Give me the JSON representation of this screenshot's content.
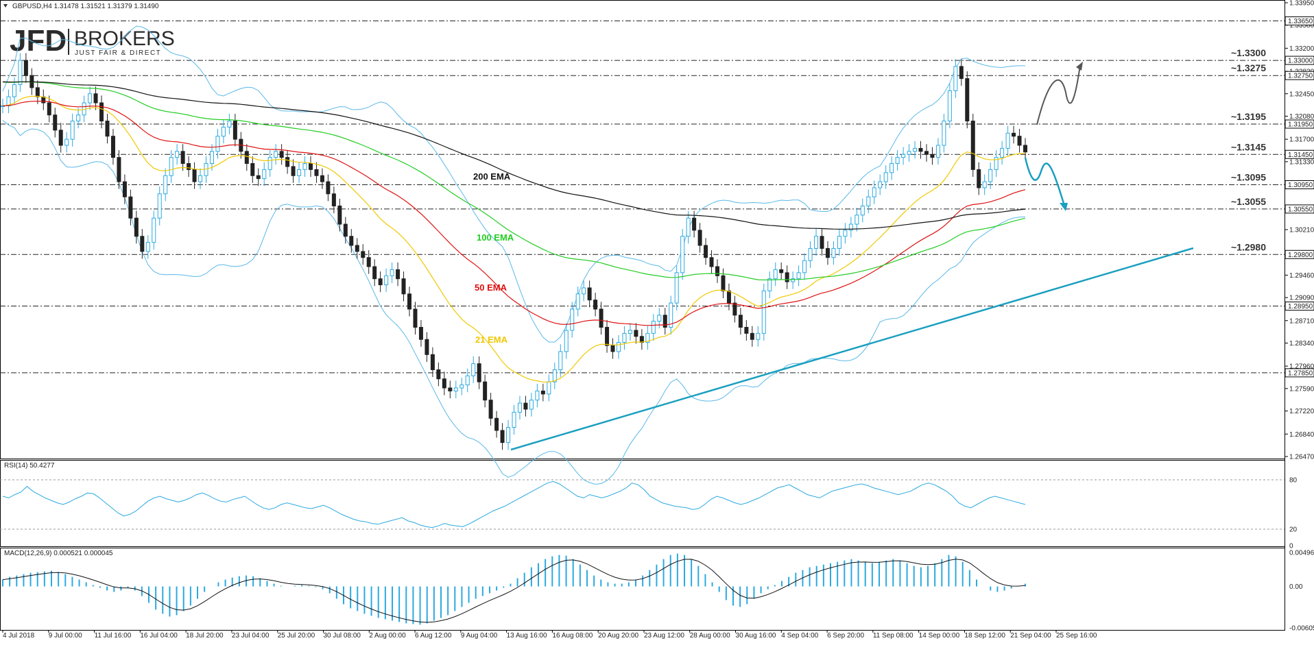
{
  "header": {
    "symbol_line": "GBPUSD,H4  1.31478 1.31521 1.31379 1.31490"
  },
  "logo": {
    "brand": "JFD",
    "brand2": "BROKERS",
    "tagline": "JUST FAIR & DIRECT"
  },
  "chart_data": [
    {
      "type": "line",
      "title": "GBPUSD,H4",
      "x": [
        "4 Jul 2018",
        "9 Jul 00:00",
        "11 Jul 16:00",
        "16 Jul 04:00",
        "18 Jul 20:00",
        "23 Jul 04:00",
        "25 Jul 20:00",
        "30 Jul 08:00",
        "2 Aug 00:00",
        "6 Aug 12:00",
        "9 Aug 04:00",
        "13 Aug 16:00",
        "16 Aug 08:00",
        "20 Aug 20:00",
        "23 Aug 12:00",
        "28 Aug 00:00",
        "30 Aug 16:00",
        "4 Sep 04:00",
        "6 Sep 20:00",
        "11 Sep 08:00",
        "14 Sep 00:00",
        "18 Sep 12:00",
        "21 Sep 04:00",
        "25 Sep 16:00"
      ],
      "price_axis_ticks": [
        "1.33950",
        "1.33650",
        "1.33580",
        "1.33200",
        "1.32820",
        "1.32450",
        "1.32080",
        "1.31700",
        "1.31330",
        "1.30950",
        "1.30580",
        "1.30210",
        "1.29800",
        "1.29460",
        "1.29090",
        "1.28710",
        "1.28340",
        "1.27960",
        "1.27590",
        "1.27220",
        "1.26840",
        "1.26470"
      ],
      "ylim": [
        1.2647,
        1.3395
      ],
      "highlighted_levels": [
        "1.33650",
        "1.33000",
        "1.32750",
        "1.31950",
        "1.31450",
        "1.30950",
        "1.30550",
        "1.29800",
        "1.28950",
        "1.27850"
      ],
      "level_annotations": [
        {
          "text": "~1.3300",
          "value": 1.33,
          "color": "#333333"
        },
        {
          "text": "~1.3275",
          "value": 1.3275,
          "color": "#333333"
        },
        {
          "text": "~1.3195",
          "value": 1.3195,
          "color": "#333333"
        },
        {
          "text": "~1.3145",
          "value": 1.3145,
          "color": "#1a9fbf"
        },
        {
          "text": "~1.3095",
          "value": 1.3095,
          "color": "#1a9fbf"
        },
        {
          "text": "~1.3055",
          "value": 1.3055,
          "color": "#1a9fbf"
        },
        {
          "text": "~1.2980",
          "value": 1.298,
          "color": "#1a9fbf"
        }
      ],
      "ema_labels": [
        {
          "text": "200 EMA",
          "color": "#111111"
        },
        {
          "text": "100 EMA",
          "color": "#22cc22"
        },
        {
          "text": "50 EMA",
          "color": "#dd1111"
        },
        {
          "text": "21 EMA",
          "color": "#f0c800"
        }
      ],
      "close_series": [
        1.3225,
        1.324,
        1.326,
        1.33,
        1.3275,
        1.3255,
        1.324,
        1.323,
        1.321,
        1.3185,
        1.316,
        1.317,
        1.32,
        1.321,
        1.323,
        1.3245,
        1.323,
        1.32,
        1.3175,
        1.314,
        1.31,
        1.3075,
        1.304,
        1.301,
        1.2985,
        1.3,
        1.304,
        1.308,
        1.311,
        1.314,
        1.315,
        1.313,
        1.312,
        1.31,
        1.311,
        1.313,
        1.315,
        1.3175,
        1.319,
        1.32,
        1.317,
        1.315,
        1.313,
        1.311,
        1.3105,
        1.312,
        1.314,
        1.315,
        1.314,
        1.3125,
        1.311,
        1.312,
        1.313,
        1.312,
        1.311,
        1.31,
        1.308,
        1.306,
        1.303,
        1.301,
        1.2995,
        1.2985,
        1.2975,
        1.296,
        1.294,
        1.293,
        1.2945,
        1.2955,
        1.294,
        1.2915,
        1.289,
        1.286,
        1.284,
        1.2815,
        1.279,
        1.2775,
        1.276,
        1.2755,
        1.276,
        1.2765,
        1.278,
        1.28,
        1.277,
        1.274,
        1.271,
        1.269,
        1.267,
        1.2695,
        1.272,
        1.2735,
        1.2725,
        1.274,
        1.2755,
        1.275,
        1.277,
        1.279,
        1.282,
        1.2855,
        1.289,
        1.2915,
        1.2925,
        1.2905,
        1.289,
        1.286,
        1.283,
        1.282,
        1.2835,
        1.285,
        1.2855,
        1.2845,
        1.2835,
        1.285,
        1.287,
        1.288,
        1.286,
        1.29,
        1.295,
        1.301,
        1.304,
        1.302,
        1.2995,
        1.2975,
        1.296,
        1.2945,
        1.292,
        1.29,
        1.288,
        1.286,
        1.285,
        1.284,
        1.285,
        1.292,
        1.294,
        1.2955,
        1.295,
        1.2935,
        1.294,
        1.295,
        1.297,
        1.299,
        1.301,
        1.299,
        1.2975,
        1.299,
        1.301,
        1.302,
        1.303,
        1.3045,
        1.306,
        1.3075,
        1.309,
        1.31,
        1.3115,
        1.313,
        1.314,
        1.3145,
        1.315,
        1.3155,
        1.315,
        1.3145,
        1.314,
        1.316,
        1.32,
        1.325,
        1.329,
        1.327,
        1.32,
        1.312,
        1.309,
        1.31,
        1.312,
        1.314,
        1.3155,
        1.318,
        1.3175,
        1.316,
        1.3149
      ],
      "ema_periods": [
        21,
        50,
        100,
        200
      ]
    },
    {
      "type": "line",
      "title": "RSI(14) 50.4277",
      "levels": [
        "80",
        "20",
        "0"
      ],
      "ylim": [
        0,
        100
      ],
      "values": [
        60,
        58,
        62,
        65,
        72,
        66,
        62,
        58,
        55,
        52,
        50,
        53,
        57,
        60,
        64,
        63,
        58,
        52,
        46,
        40,
        36,
        38,
        42,
        48,
        54,
        58,
        60,
        57,
        55,
        53,
        55,
        58,
        62,
        64,
        61,
        57,
        54,
        53,
        56,
        58,
        60,
        55,
        50,
        46,
        44,
        46,
        50,
        52,
        50,
        48,
        46,
        45,
        47,
        49,
        46,
        42,
        38,
        35,
        32,
        30,
        29,
        27,
        26,
        28,
        30,
        32,
        34,
        30,
        28,
        25,
        23,
        22,
        24,
        27,
        25,
        24,
        23,
        26,
        30,
        34,
        38,
        42,
        45,
        48,
        52,
        56,
        60,
        64,
        68,
        72,
        76,
        78,
        75,
        70,
        65,
        60,
        58,
        62,
        60,
        58,
        60,
        63,
        66,
        70,
        76,
        74,
        68,
        60,
        56,
        52,
        50,
        48,
        47,
        46,
        44,
        45,
        50,
        56,
        60,
        58,
        55,
        52,
        50,
        52,
        55,
        58,
        62,
        66,
        70,
        72,
        74,
        70,
        66,
        62,
        60,
        58,
        62,
        66,
        68,
        70,
        72,
        74,
        75,
        73,
        70,
        68,
        66,
        64,
        62,
        64,
        66,
        70,
        74,
        76,
        74,
        70,
        66,
        60,
        52,
        48,
        46,
        50,
        54,
        58,
        60,
        58,
        56,
        54,
        52,
        50
      ]
    },
    {
      "type": "bar",
      "title": "MACD(12,26,9) 0.000521 0.000045",
      "ylabel_ticks": [
        "0.004967",
        "0.00",
        "-0.006059"
      ],
      "ylim": [
        -0.006059,
        0.004967
      ],
      "values": [
        0.001,
        0.0014,
        0.0016,
        0.0018,
        0.002,
        0.0021,
        0.0022,
        0.0023,
        0.0021,
        0.0018,
        0.0014,
        0.001,
        0.0006,
        0.0002,
        -0.0002,
        -0.0006,
        -0.0008,
        -0.0006,
        -0.0002,
        -0.0006,
        -0.0014,
        -0.0024,
        -0.0034,
        -0.004,
        -0.0044,
        -0.0042,
        -0.0036,
        -0.0028,
        -0.0018,
        -0.0008,
        0.0,
        0.0006,
        0.001,
        0.0013,
        0.0015,
        0.0016,
        0.0015,
        0.0012,
        0.0008,
        0.0004,
        0.0001,
        0.0,
        0.0001,
        0.0002,
        0.0001,
        -0.0001,
        -0.0004,
        -0.001,
        -0.0018,
        -0.0026,
        -0.0032,
        -0.0036,
        -0.004,
        -0.0043,
        -0.0046,
        -0.0048,
        -0.005,
        -0.0052,
        -0.0054,
        -0.0055,
        -0.0056,
        -0.0054,
        -0.005,
        -0.0046,
        -0.0042,
        -0.0036,
        -0.003,
        -0.0024,
        -0.0018,
        -0.0014,
        -0.001,
        -0.0006,
        -0.0002,
        0.0004,
        0.0012,
        0.002,
        0.0028,
        0.0034,
        0.004,
        0.0044,
        0.0046,
        0.0045,
        0.004,
        0.0032,
        0.0024,
        0.0016,
        0.001,
        0.0006,
        0.0004,
        0.0004,
        0.0006,
        0.001,
        0.0016,
        0.0024,
        0.0032,
        0.004,
        0.0046,
        0.0048,
        0.0046,
        0.004,
        0.003,
        0.0018,
        0.0006,
        -0.0008,
        -0.002,
        -0.0028,
        -0.003,
        -0.0026,
        -0.0018,
        -0.001,
        -0.0004,
        0.0002,
        0.0008,
        0.0014,
        0.002,
        0.0024,
        0.0028,
        0.003,
        0.0032,
        0.0034,
        0.0036,
        0.0038,
        0.004,
        0.0038,
        0.0036,
        0.0034,
        0.0036,
        0.0038,
        0.004,
        0.0038,
        0.0034,
        0.003,
        0.0028,
        0.003,
        0.0034,
        0.004,
        0.0046,
        0.0044,
        0.0036,
        0.0024,
        0.001,
        0.0,
        -0.0006,
        -0.0008,
        -0.0006,
        -0.0003,
        0.0,
        0.0004
      ]
    }
  ]
}
